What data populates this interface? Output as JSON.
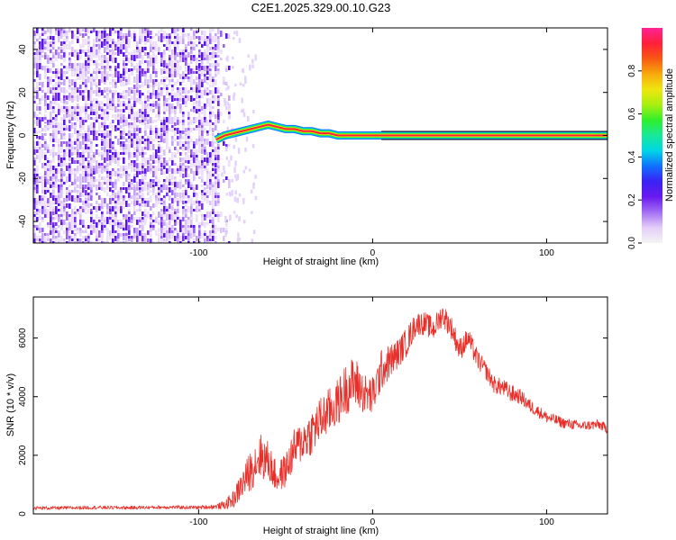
{
  "title": "C2E1.2025.329.00.10.G23",
  "chart_data": [
    {
      "type": "heatmap",
      "name": "spectrogram",
      "xlabel": "Height of straight line (km)",
      "ylabel": "Frequency (Hz)",
      "xlim": [
        -195,
        135
      ],
      "ylim": [
        -50,
        50
      ],
      "xticks": [
        -100,
        0,
        100
      ],
      "xtick_labels": [
        "-100",
        "0",
        "100"
      ],
      "yticks": [
        -40,
        -20,
        0,
        20,
        40
      ],
      "ytick_labels": [
        "-40",
        "-20",
        "0",
        "20",
        "40"
      ],
      "noise_region_x": [
        -195,
        -88
      ],
      "signal_trace": {
        "x": [
          -90,
          -85,
          -80,
          -75,
          -70,
          -65,
          -60,
          -55,
          -50,
          -45,
          -40,
          -35,
          -30,
          -25,
          -20,
          -15,
          -10,
          -5,
          0,
          5,
          10,
          20,
          40,
          60,
          80,
          100,
          120,
          135
        ],
        "freq": [
          -2,
          0,
          1,
          2,
          3,
          4,
          5,
          4,
          3,
          3,
          2,
          2,
          1,
          1,
          0,
          0,
          0,
          0,
          0,
          0,
          0,
          0,
          0,
          0,
          0,
          0,
          0,
          0
        ]
      }
    },
    {
      "type": "line",
      "name": "snr",
      "xlabel": "Height of straight line (km)",
      "ylabel": "SNR (10 * v/v)",
      "xlim": [
        -195,
        135
      ],
      "ylim": [
        0,
        7400
      ],
      "xticks": [
        -100,
        0,
        100
      ],
      "xtick_labels": [
        "-100",
        "0",
        "100"
      ],
      "yticks": [
        0,
        2000,
        4000,
        6000
      ],
      "ytick_labels": [
        "0",
        "2000",
        "4000",
        "6000"
      ],
      "color": "#e8302a",
      "x": [
        -195,
        -180,
        -160,
        -140,
        -120,
        -100,
        -90,
        -85,
        -80,
        -75,
        -70,
        -65,
        -60,
        -55,
        -50,
        -45,
        -40,
        -35,
        -30,
        -25,
        -20,
        -15,
        -10,
        -5,
        0,
        5,
        10,
        15,
        20,
        25,
        30,
        35,
        40,
        45,
        50,
        55,
        60,
        65,
        70,
        75,
        80,
        85,
        90,
        95,
        100,
        110,
        120,
        130,
        135
      ],
      "y": [
        200,
        200,
        220,
        210,
        230,
        220,
        250,
        300,
        500,
        1000,
        1500,
        2000,
        1800,
        1200,
        1500,
        2200,
        2500,
        2800,
        3200,
        3500,
        3800,
        4300,
        4500,
        4100,
        4000,
        4900,
        5200,
        5500,
        5900,
        6500,
        6500,
        6300,
        6800,
        6400,
        5600,
        6000,
        5300,
        4900,
        4400,
        4300,
        4100,
        4000,
        3700,
        3500,
        3300,
        3100,
        3000,
        3050,
        2900
      ],
      "noise_amp": [
        60,
        60,
        60,
        60,
        60,
        60,
        80,
        150,
        300,
        500,
        700,
        800,
        700,
        500,
        600,
        700,
        700,
        800,
        800,
        800,
        800,
        900,
        900,
        700,
        700,
        700,
        600,
        500,
        500,
        400,
        400,
        400,
        400,
        400,
        400,
        350,
        350,
        300,
        300,
        300,
        300,
        250,
        250,
        200,
        200,
        180,
        170,
        170,
        170
      ]
    }
  ],
  "colorbar": {
    "label": "Normalized spectral amplitude",
    "range": [
      0,
      1
    ],
    "ticks": [
      0.0,
      0.2,
      0.4,
      0.6,
      0.8
    ],
    "tick_labels": [
      "0.0",
      "0.2",
      "0.4",
      "0.6",
      "0.8"
    ],
    "colors": [
      "#f4f4f4",
      "#e4cef9",
      "#a36ff3",
      "#6a19ef",
      "#3a22f5",
      "#1070ff",
      "#00d6e6",
      "#18e99a",
      "#2fef2a",
      "#a9ef10",
      "#efe60f",
      "#f6a90b",
      "#f85812",
      "#ff1f39",
      "#ff2397"
    ]
  }
}
